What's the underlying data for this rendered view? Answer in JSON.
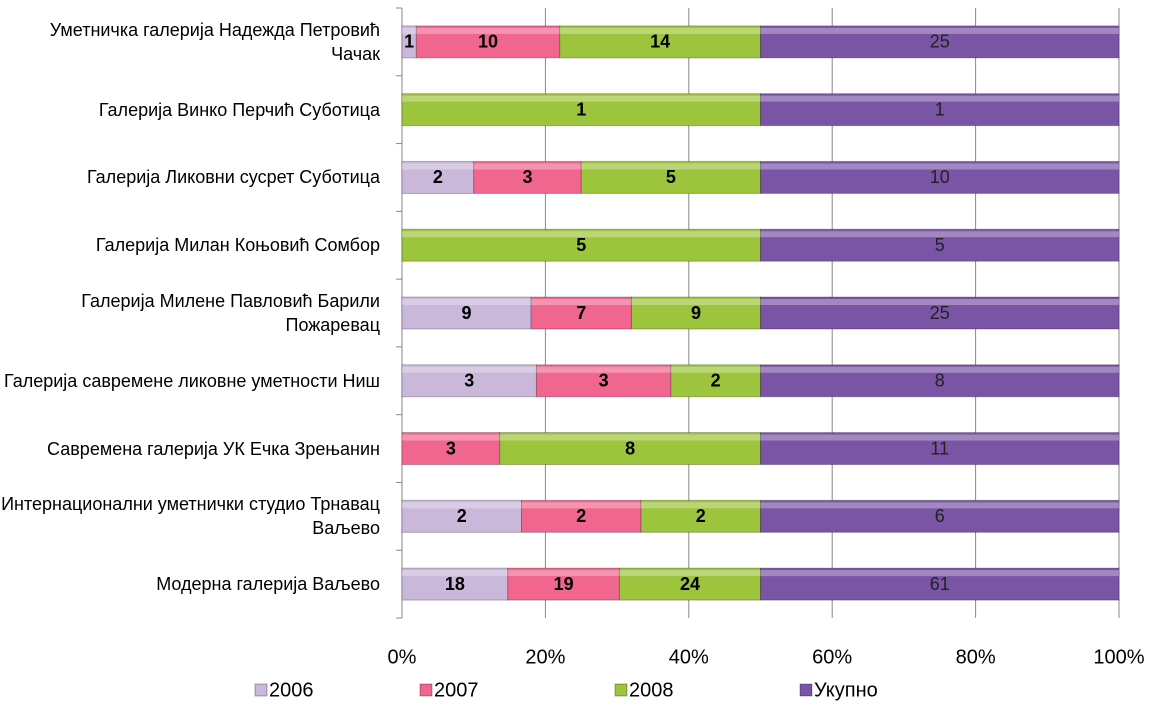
{
  "chart_data": {
    "type": "bar",
    "orientation": "horizontal",
    "stacking": "percent",
    "categories": [
      "Уметничка галерија Надежда Петровић Чачак",
      "Галерија Винко Перчић Суботица",
      "Галерија Ликовни сусрет Суботица",
      "Галерија Милан Коњовић Сомбор",
      "Галерија Милене Павловић Барили Пожаревац",
      "Галерија савремене ликовне уметности Ниш",
      "Савремена галерија УК Ечка Зрењанин",
      "Интернационални уметнички студио Трнавац Ваљево",
      "Модерна галерија Ваљево"
    ],
    "series": [
      {
        "name": "2006",
        "color": "#c9b8da",
        "values": [
          1,
          null,
          2,
          null,
          9,
          3,
          null,
          2,
          18
        ]
      },
      {
        "name": "2007",
        "color": "#f0668f",
        "values": [
          10,
          null,
          3,
          null,
          7,
          3,
          3,
          2,
          19
        ]
      },
      {
        "name": "2008",
        "color": "#9cc43c",
        "values": [
          14,
          1,
          5,
          5,
          9,
          2,
          8,
          2,
          24
        ]
      },
      {
        "name": "Укупно",
        "color": "#7a55a5",
        "values": [
          25,
          1,
          10,
          5,
          25,
          8,
          11,
          6,
          61
        ]
      }
    ],
    "xlim": [
      0,
      100
    ],
    "xticks": [
      {
        "value": 0,
        "label": "0%"
      },
      {
        "value": 20,
        "label": "20%"
      },
      {
        "value": 40,
        "label": "40%"
      },
      {
        "value": 60,
        "label": "60%"
      },
      {
        "value": 80,
        "label": "80%"
      },
      {
        "value": 100,
        "label": "100%"
      }
    ],
    "grid": true,
    "legend": "bottom"
  }
}
